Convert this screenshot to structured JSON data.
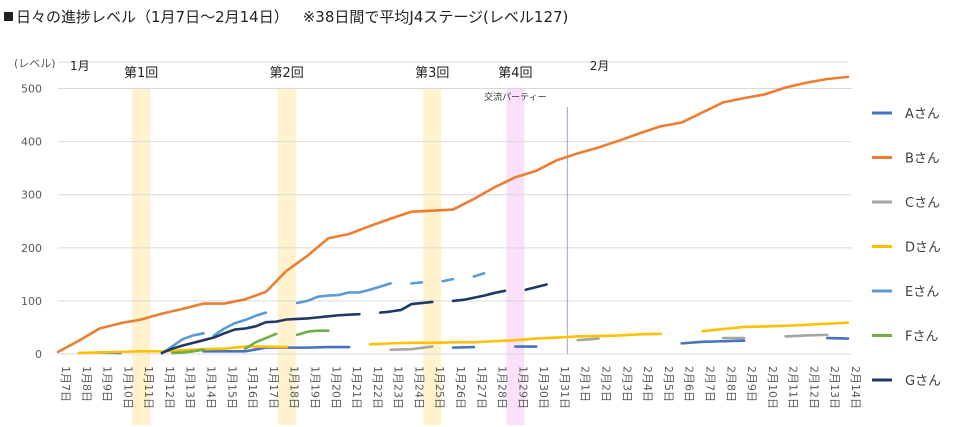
{
  "chart_data": {
    "type": "line",
    "title": "日々の進捗レベル（1月7日～2月14日）",
    "note": "※38日間で平均J4ステージ(レベル127)",
    "ylabel": "(レベル)",
    "ylim": [
      0,
      550
    ],
    "yticks": [
      0,
      100,
      200,
      300,
      400,
      500
    ],
    "months": [
      {
        "label": "1月",
        "at": "1月7日"
      },
      {
        "label": "2月",
        "at": "2月1日"
      }
    ],
    "categories": [
      "1月7日",
      "1月8日",
      "1月9日",
      "1月10日",
      "1月11日",
      "1月12日",
      "1月13日",
      "1月14日",
      "1月15日",
      "1月16日",
      "1月17日",
      "1月18日",
      "1月19日",
      "1月20日",
      "1月21日",
      "1月22日",
      "1月23日",
      "1月24日",
      "1月25日",
      "1月26日",
      "1月27日",
      "1月28日",
      "1月29日",
      "1月30日",
      "1月31日",
      "2月1日",
      "2月2日",
      "2月3日",
      "2月4日",
      "2月5日",
      "2月6日",
      "2月7日",
      "2月8日",
      "2月9日",
      "2月10日",
      "2月11日",
      "2月12日",
      "2月13日",
      "2月14日"
    ],
    "events": [
      {
        "label": "第1回",
        "day": "1月11日",
        "color": "#fff2cc"
      },
      {
        "label": "第2回",
        "day": "1月18日",
        "color": "#fff2cc"
      },
      {
        "label": "第3回",
        "day": "1月25日",
        "color": "#fff2cc"
      },
      {
        "label": "第4回",
        "day": "1月29日",
        "color": "#fbe0fb",
        "sublabel": "交流パーティー"
      }
    ],
    "series": [
      {
        "name": "Aさん",
        "color": "#4472c4",
        "values": [
          null,
          null,
          3,
          2,
          null,
          null,
          null,
          5,
          5,
          5,
          12,
          12,
          12,
          13,
          13,
          null,
          null,
          null,
          null,
          12,
          13,
          null,
          14,
          14,
          null,
          null,
          null,
          null,
          null,
          null,
          20,
          23,
          24,
          25,
          null,
          null,
          null,
          30,
          29
        ]
      },
      {
        "name": "Bさん",
        "color": "#ed7d31",
        "values": [
          4,
          25,
          48,
          58,
          65,
          76,
          85,
          95,
          95,
          103,
          117,
          157,
          185,
          218,
          226,
          241,
          255,
          268,
          270,
          272,
          292,
          314,
          333,
          345,
          365,
          378,
          389,
          402,
          416,
          429,
          436,
          455,
          474,
          482,
          489,
          502,
          511,
          518,
          522
        ]
      },
      {
        "name": "Cさん",
        "color": "#a5a5a5",
        "values": [
          null,
          null,
          null,
          null,
          null,
          null,
          null,
          null,
          null,
          null,
          null,
          null,
          null,
          null,
          null,
          null,
          8,
          9,
          14,
          null,
          null,
          null,
          null,
          null,
          null,
          26,
          29,
          null,
          null,
          null,
          null,
          null,
          30,
          30,
          null,
          33,
          35,
          36,
          null
        ]
      },
      {
        "name": "Dさん",
        "color": "#ffc000",
        "values": [
          null,
          2,
          3,
          4,
          5,
          5,
          7,
          9,
          10,
          14,
          14,
          13,
          null,
          null,
          null,
          18,
          20,
          21,
          21,
          22,
          22,
          24,
          26,
          29,
          31,
          33,
          34,
          35,
          37,
          38,
          null,
          43,
          47,
          51,
          52,
          53,
          55,
          57,
          59
        ]
      },
      {
        "name": "Eさん",
        "color": "#5b9bd5",
        "values": [
          null,
          null,
          null,
          null,
          null,
          null,
          null,
          null,
          null,
          null,
          null,
          null,
          null,
          null,
          null,
          null,
          null,
          null,
          null,
          null,
          null,
          null,
          null,
          null,
          null,
          null,
          null,
          null,
          null,
          null,
          null,
          null,
          null,
          null,
          null,
          null,
          null,
          null,
          null
        ],
        "segments": [
          [
            [
              10,
              1
            ],
            [
              12,
              28
            ],
            [
              13,
              35
            ],
            [
              14,
              39
            ]
          ],
          [
            [
              15,
              35
            ],
            [
              16,
              48
            ],
            [
              17,
              58
            ],
            [
              18,
              64
            ],
            [
              19,
              72
            ],
            [
              20,
              78
            ]
          ],
          [
            [
              23,
              96
            ],
            [
              24,
              100
            ],
            [
              25,
              108
            ],
            [
              26,
              110
            ],
            [
              27,
              111
            ],
            [
              28,
              116
            ],
            [
              29,
              116
            ],
            [
              30,
              121
            ],
            [
              31,
              127
            ],
            [
              32,
              133
            ]
          ],
          [
            [
              34,
              133
            ],
            [
              35,
              135
            ]
          ],
          [
            [
              37,
              137
            ],
            [
              38,
              141
            ]
          ],
          [
            [
              40,
              146
            ],
            [
              41,
              152
            ]
          ]
        ]
      },
      {
        "name": "Fさん",
        "color": "#70ad47",
        "values": [
          null,
          null,
          null,
          null,
          null,
          null,
          null,
          null,
          null,
          null,
          null,
          null,
          null,
          null,
          null,
          null,
          null,
          null,
          null,
          null,
          null,
          null,
          null,
          null,
          null,
          null,
          null,
          null,
          null,
          null,
          null,
          null,
          null,
          null,
          null,
          null,
          null,
          null,
          null
        ],
        "segments": [
          [
            [
              11,
              2
            ],
            [
              12,
              3
            ],
            [
              13,
              5
            ],
            [
              14,
              8
            ]
          ],
          [
            [
              18,
              10
            ],
            [
              19,
              22
            ],
            [
              20,
              30
            ],
            [
              21,
              38
            ]
          ],
          [
            [
              23,
              36
            ],
            [
              24,
              42
            ],
            [
              25,
              44
            ],
            [
              26,
              44
            ]
          ]
        ]
      },
      {
        "name": "Gさん",
        "color": "#203864",
        "values": [
          null,
          null,
          null,
          null,
          null,
          null,
          null,
          null,
          null,
          null,
          null,
          null,
          null,
          null,
          null,
          null,
          null,
          null,
          null,
          null,
          null,
          null,
          null,
          null,
          null,
          null,
          null,
          null,
          null,
          null,
          null,
          null,
          null,
          null,
          null,
          null,
          null,
          null,
          null
        ],
        "segments": [
          [
            [
              10,
              2
            ],
            [
              11,
              10
            ],
            [
              12,
              16
            ],
            [
              13,
              21
            ],
            [
              14,
              26
            ],
            [
              15,
              31
            ],
            [
              16,
              39
            ],
            [
              17,
              46
            ],
            [
              18,
              48
            ],
            [
              19,
              52
            ],
            [
              20,
              60
            ],
            [
              21,
              61
            ],
            [
              22,
              65
            ],
            [
              23,
              66
            ],
            [
              24,
              67
            ],
            [
              25,
              69
            ],
            [
              26,
              71
            ],
            [
              27,
              73
            ],
            [
              28,
              74
            ],
            [
              29,
              75
            ]
          ],
          [
            [
              31,
              78
            ],
            [
              32,
              80
            ],
            [
              33,
              83
            ],
            [
              34,
              94
            ],
            [
              35,
              96
            ],
            [
              36,
              98
            ]
          ],
          [
            [
              38,
              100
            ],
            [
              39,
              102
            ],
            [
              40,
              106
            ],
            [
              41,
              110
            ],
            [
              42,
              115
            ],
            [
              43,
              119
            ]
          ],
          [
            [
              45,
              121
            ],
            [
              46,
              126
            ],
            [
              47,
              131
            ]
          ]
        ]
      }
    ]
  }
}
